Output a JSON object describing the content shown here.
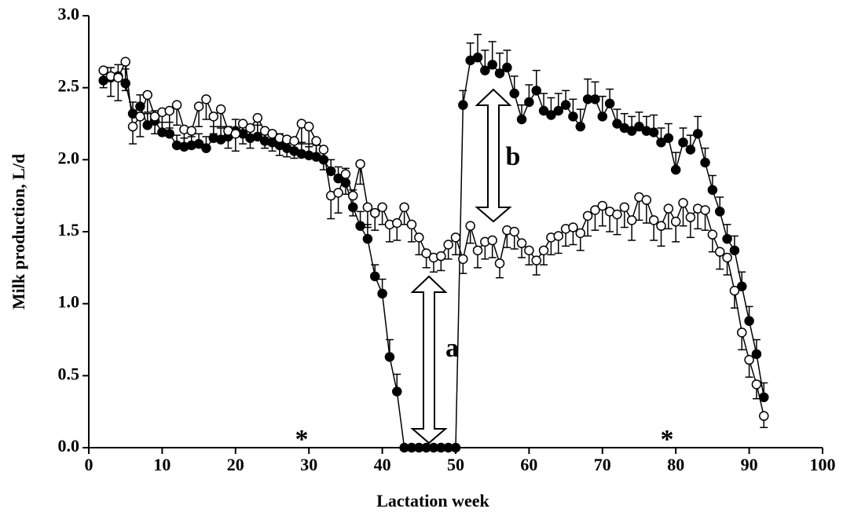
{
  "chart_data": {
    "type": "line",
    "xlabel": "Lactation week",
    "ylabel": "Milk production, L/d",
    "xlim": [
      0,
      100
    ],
    "xticks": [
      0,
      10,
      20,
      30,
      40,
      50,
      60,
      70,
      80,
      90,
      100
    ],
    "ylim": [
      0,
      3
    ],
    "yticks": [
      {
        "value": 0,
        "label": "0.0"
      },
      0.5,
      {
        "value": 1,
        "label": "1.0"
      },
      1.5,
      {
        "value": 2,
        "label": "2.0"
      },
      2.5,
      {
        "value": 3,
        "label": "3.0"
      }
    ],
    "x": [
      2,
      3,
      4,
      5,
      6,
      7,
      8,
      9,
      10,
      11,
      12,
      13,
      14,
      15,
      16,
      17,
      18,
      19,
      20,
      21,
      22,
      23,
      24,
      25,
      26,
      27,
      28,
      29,
      30,
      31,
      32,
      33,
      34,
      35,
      36,
      37,
      38,
      39,
      40,
      41,
      42,
      43,
      44,
      45,
      46,
      47,
      48,
      49,
      50,
      51,
      52,
      53,
      54,
      55,
      56,
      57,
      58,
      59,
      60,
      61,
      62,
      63,
      64,
      65,
      66,
      67,
      68,
      69,
      70,
      71,
      72,
      73,
      74,
      75,
      76,
      77,
      78,
      79,
      80,
      81,
      82,
      83,
      84,
      85,
      86,
      87,
      88,
      89,
      90,
      91,
      92
    ],
    "series": [
      {
        "color": "#000000",
        "marker": "filled",
        "error_direction": "up",
        "values": [
          2.55,
          2.57,
          2.58,
          2.53,
          2.32,
          2.37,
          2.24,
          2.27,
          2.19,
          2.18,
          2.1,
          2.09,
          2.1,
          2.11,
          2.08,
          2.15,
          2.14,
          2.16,
          2.2,
          2.18,
          2.15,
          2.16,
          2.13,
          2.12,
          2.1,
          2.08,
          2.06,
          2.04,
          2.03,
          2.02,
          2.0,
          1.92,
          1.87,
          1.84,
          1.67,
          1.54,
          1.45,
          1.19,
          1.07,
          0.63,
          0.39,
          0,
          0,
          0,
          0,
          0,
          0,
          0,
          0,
          2.38,
          2.69,
          2.71,
          2.62,
          2.66,
          2.6,
          2.64,
          2.46,
          2.28,
          2.4,
          2.48,
          2.34,
          2.31,
          2.34,
          2.38,
          2.3,
          2.23,
          2.42,
          2.42,
          2.3,
          2.39,
          2.25,
          2.22,
          2.2,
          2.23,
          2.2,
          2.19,
          2.12,
          2.15,
          1.93,
          2.12,
          2.07,
          2.18,
          1.98,
          1.79,
          1.64,
          1.45,
          1.37,
          1.12,
          0.88,
          0.65,
          0.35
        ],
        "errors": [
          0.08,
          0.07,
          0.08,
          0.1,
          0.08,
          0.08,
          0.08,
          0.07,
          0.07,
          0.08,
          0.07,
          0.06,
          0.06,
          0.07,
          0.08,
          0.08,
          0.08,
          0.07,
          0.08,
          0.08,
          0.08,
          0.08,
          0.08,
          0.08,
          0.08,
          0.08,
          0.08,
          0.08,
          0.08,
          0.08,
          0.08,
          0.08,
          0.08,
          0.1,
          0.12,
          0.1,
          0.1,
          0.08,
          0.1,
          0.12,
          0.12,
          0,
          0,
          0,
          0,
          0,
          0,
          0,
          0,
          0.1,
          0.12,
          0.16,
          0.14,
          0.16,
          0.14,
          0.12,
          0.12,
          0.1,
          0.12,
          0.14,
          0.12,
          0.12,
          0.12,
          0.1,
          0.12,
          0.12,
          0.14,
          0.12,
          0.14,
          0.1,
          0.1,
          0.1,
          0.1,
          0.1,
          0.1,
          0.12,
          0.1,
          0.1,
          0.12,
          0.1,
          0.1,
          0.12,
          0.1,
          0.1,
          0.1,
          0.1,
          0.1,
          0.1,
          0.1,
          0.1,
          0.1
        ]
      },
      {
        "color": "#000000",
        "marker": "open",
        "error_direction": "down",
        "values": [
          2.62,
          2.58,
          2.57,
          2.68,
          2.23,
          2.3,
          2.45,
          2.3,
          2.33,
          2.34,
          2.38,
          2.21,
          2.2,
          2.37,
          2.42,
          2.3,
          2.35,
          2.2,
          2.18,
          2.25,
          2.22,
          2.29,
          2.2,
          2.18,
          2.15,
          2.14,
          2.13,
          2.25,
          2.23,
          2.13,
          2.07,
          1.75,
          1.77,
          1.9,
          1.75,
          1.97,
          1.67,
          1.63,
          1.67,
          1.55,
          1.56,
          1.67,
          1.55,
          1.46,
          1.35,
          1.32,
          1.33,
          1.41,
          1.46,
          1.31,
          1.54,
          1.37,
          1.43,
          1.44,
          1.28,
          1.51,
          1.5,
          1.42,
          1.37,
          1.3,
          1.37,
          1.46,
          1.47,
          1.52,
          1.53,
          1.49,
          1.61,
          1.65,
          1.68,
          1.64,
          1.62,
          1.67,
          1.58,
          1.74,
          1.72,
          1.58,
          1.54,
          1.66,
          1.57,
          1.7,
          1.6,
          1.66,
          1.65,
          1.48,
          1.36,
          1.32,
          1.09,
          0.8,
          0.61,
          0.44,
          0.22
        ],
        "errors": [
          0.12,
          0.14,
          0.16,
          0.2,
          0.12,
          0.14,
          0.12,
          0.12,
          0.12,
          0.12,
          0.14,
          0.12,
          0.12,
          0.14,
          0.14,
          0.12,
          0.12,
          0.12,
          0.12,
          0.14,
          0.14,
          0.14,
          0.12,
          0.12,
          0.12,
          0.12,
          0.12,
          0.14,
          0.14,
          0.12,
          0.14,
          0.16,
          0.14,
          0.14,
          0.14,
          0.14,
          0.14,
          0.12,
          0.12,
          0.12,
          0.12,
          0.12,
          0.12,
          0.12,
          0.1,
          0.1,
          0.1,
          0.1,
          0.12,
          0.1,
          0.12,
          0.12,
          0.12,
          0.12,
          0.1,
          0.12,
          0.12,
          0.1,
          0.1,
          0.1,
          0.1,
          0.12,
          0.12,
          0.12,
          0.12,
          0.12,
          0.14,
          0.14,
          0.14,
          0.14,
          0.14,
          0.14,
          0.14,
          0.16,
          0.16,
          0.14,
          0.14,
          0.14,
          0.14,
          0.16,
          0.14,
          0.14,
          0.14,
          0.12,
          0.12,
          0.12,
          0.12,
          0.12,
          0.12,
          0.1,
          0.08
        ]
      }
    ],
    "annotations": [
      "a",
      "b",
      "*",
      "*"
    ]
  }
}
